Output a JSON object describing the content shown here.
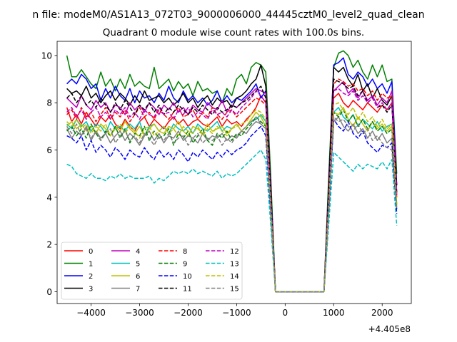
{
  "chart_data": {
    "type": "line",
    "suptitle": "n file: modeM0/AS1A13_072T03_9000006000_44445cztM0_level2_quad_clean",
    "title": "Quadrant 0 module wise count rates with 100.0s bins.",
    "xlabel": "",
    "ylabel": "",
    "x_offset_label": "+4.405e8",
    "xlim": [
      -4700,
      2600
    ],
    "ylim": [
      -0.5,
      10.6
    ],
    "xticks": [
      -4000,
      -3000,
      -2000,
      -1000,
      0,
      1000,
      2000
    ],
    "xtick_labels": [
      "−4000",
      "−3000",
      "−2000",
      "−1000",
      "0",
      "1000",
      "2000"
    ],
    "yticks": [
      0,
      2,
      4,
      6,
      8,
      10
    ],
    "ytick_labels": [
      "0",
      "2",
      "4",
      "6",
      "8",
      "10"
    ],
    "grid": false,
    "legend_position": "lower-left",
    "x": [
      -4500,
      -4400,
      -4300,
      -4200,
      -4100,
      -4000,
      -3900,
      -3800,
      -3700,
      -3600,
      -3500,
      -3400,
      -3300,
      -3200,
      -3100,
      -3000,
      -2900,
      -2800,
      -2700,
      -2600,
      -2500,
      -2400,
      -2300,
      -2200,
      -2100,
      -2000,
      -1900,
      -1800,
      -1700,
      -1600,
      -1500,
      -1400,
      -1300,
      -1200,
      -1100,
      -1000,
      -900,
      -800,
      -700,
      -600,
      -500,
      -400,
      -300,
      -200,
      -100,
      0,
      100,
      200,
      300,
      400,
      500,
      600,
      700,
      800,
      900,
      1000,
      1100,
      1200,
      1300,
      1400,
      1500,
      1600,
      1700,
      1800,
      1900,
      2000,
      2100,
      2200,
      2300
    ],
    "series": [
      {
        "name": "0",
        "color": "#ff0000",
        "dash": "solid",
        "values": [
          7.8,
          7.2,
          7.5,
          7.1,
          7.6,
          7.3,
          7.0,
          7.4,
          7.2,
          7.5,
          7.1,
          6.9,
          7.3,
          7.0,
          6.8,
          7.2,
          7.4,
          7.0,
          7.3,
          7.1,
          6.9,
          7.2,
          7.4,
          7.1,
          7.3,
          7.0,
          7.2,
          7.3,
          7.1,
          7.0,
          7.2,
          7.4,
          7.0,
          7.3,
          7.1,
          7.2,
          7.0,
          7.3,
          7.5,
          7.8,
          8.3,
          8.0,
          4.0,
          0,
          0,
          0,
          0,
          0,
          0,
          0,
          0,
          0,
          0,
          0,
          4.0,
          8.2,
          8.4,
          8.0,
          7.8,
          8.1,
          7.9,
          7.7,
          8.0,
          7.8,
          7.6,
          7.9,
          7.7,
          8.0,
          4.0
        ]
      },
      {
        "name": "1",
        "color": "#008000",
        "dash": "solid",
        "values": [
          10.0,
          9.1,
          9.1,
          9.4,
          9.1,
          8.8,
          8.6,
          9.3,
          8.7,
          9.0,
          8.5,
          9.0,
          8.6,
          9.2,
          8.7,
          8.9,
          8.7,
          8.6,
          9.5,
          8.6,
          8.8,
          9.0,
          8.5,
          8.9,
          8.6,
          8.8,
          8.3,
          8.9,
          8.5,
          8.6,
          8.4,
          8.5,
          8.0,
          8.6,
          8.3,
          9.0,
          9.2,
          8.8,
          9.5,
          9.7,
          9.6,
          9.3,
          5.0,
          0,
          0,
          0,
          0,
          0,
          0,
          0,
          0,
          0,
          0,
          0,
          5.0,
          9.5,
          10.1,
          10.2,
          10.0,
          9.5,
          9.8,
          9.3,
          9.0,
          9.6,
          9.1,
          9.6,
          8.9,
          9.0,
          5.0
        ]
      },
      {
        "name": "2",
        "color": "#0000ff",
        "dash": "solid",
        "values": [
          8.8,
          9.0,
          8.8,
          9.2,
          9.0,
          8.6,
          8.8,
          8.1,
          8.6,
          8.2,
          8.7,
          8.3,
          8.1,
          8.6,
          8.0,
          8.5,
          8.2,
          8.3,
          8.0,
          8.4,
          8.1,
          8.7,
          8.2,
          8.0,
          8.5,
          8.1,
          8.3,
          8.0,
          8.2,
          7.9,
          8.1,
          8.5,
          8.0,
          8.3,
          8.0,
          8.2,
          8.1,
          8.3,
          8.5,
          8.8,
          8.2,
          8.5,
          4.5,
          0,
          0,
          0,
          0,
          0,
          0,
          0,
          0,
          0,
          0,
          0,
          4.5,
          9.6,
          9.7,
          9.9,
          9.2,
          9.0,
          9.3,
          9.1,
          8.7,
          9.0,
          8.6,
          8.8,
          8.4,
          8.9,
          4.5
        ]
      },
      {
        "name": "3",
        "color": "#000000",
        "dash": "solid",
        "values": [
          8.6,
          8.4,
          8.5,
          8.3,
          8.7,
          8.2,
          8.4,
          8.0,
          8.3,
          8.5,
          8.1,
          8.4,
          8.2,
          7.9,
          8.3,
          8.0,
          8.5,
          8.1,
          8.2,
          8.3,
          8.0,
          8.2,
          7.9,
          8.1,
          8.4,
          8.0,
          8.2,
          7.8,
          8.1,
          8.3,
          7.9,
          8.2,
          8.0,
          8.1,
          7.8,
          8.2,
          8.3,
          8.5,
          8.8,
          9.0,
          9.6,
          8.7,
          4.5,
          0,
          0,
          0,
          0,
          0,
          0,
          0,
          0,
          0,
          0,
          0,
          4.5,
          9.5,
          9.3,
          9.5,
          9.0,
          8.7,
          9.2,
          8.5,
          8.8,
          8.2,
          8.6,
          8.1,
          7.9,
          8.3,
          4.5
        ]
      },
      {
        "name": "4",
        "color": "#bf00bf",
        "dash": "solid",
        "values": [
          8.2,
          8.0,
          7.8,
          8.3,
          7.9,
          7.7,
          8.1,
          7.8,
          8.0,
          7.6,
          7.9,
          7.8,
          7.5,
          8.0,
          7.7,
          7.9,
          7.6,
          8.0,
          7.8,
          7.5,
          7.9,
          7.7,
          8.0,
          7.6,
          7.8,
          7.5,
          7.9,
          7.7,
          7.6,
          8.0,
          7.8,
          7.7,
          8.1,
          7.6,
          7.9,
          7.8,
          8.0,
          8.2,
          8.4,
          8.6,
          8.5,
          8.4,
          4.2,
          0,
          0,
          0,
          0,
          0,
          0,
          0,
          0,
          0,
          0,
          0,
          4.2,
          8.5,
          8.7,
          8.9,
          8.4,
          8.6,
          8.2,
          8.5,
          8.1,
          8.3,
          7.9,
          8.2,
          8.0,
          8.5,
          4.2
        ]
      },
      {
        "name": "5",
        "color": "#00bfbf",
        "dash": "solid",
        "values": [
          7.1,
          6.9,
          7.3,
          7.0,
          7.2,
          6.8,
          7.1,
          7.0,
          6.7,
          7.2,
          6.9,
          7.0,
          6.8,
          7.1,
          6.9,
          7.2,
          6.6,
          7.0,
          7.1,
          6.8,
          7.0,
          6.7,
          7.1,
          6.9,
          6.8,
          7.0,
          6.7,
          7.1,
          6.9,
          6.8,
          7.0,
          7.2,
          6.8,
          7.0,
          6.9,
          7.1,
          6.8,
          7.0,
          7.2,
          7.3,
          7.5,
          7.2,
          3.7,
          0,
          0,
          0,
          0,
          0,
          0,
          0,
          0,
          0,
          0,
          0,
          3.7,
          7.6,
          7.8,
          7.4,
          7.2,
          7.5,
          7.0,
          7.3,
          7.1,
          6.9,
          7.2,
          6.8,
          7.0,
          7.1,
          3.7
        ]
      },
      {
        "name": "6",
        "color": "#bfbf00",
        "dash": "solid",
        "values": [
          7.0,
          7.2,
          6.9,
          7.1,
          6.8,
          7.0,
          6.7,
          7.1,
          6.9,
          6.6,
          7.0,
          6.8,
          7.2,
          6.9,
          6.7,
          7.0,
          6.6,
          6.9,
          7.1,
          6.8,
          6.7,
          7.0,
          6.9,
          7.2,
          6.8,
          6.6,
          7.0,
          6.9,
          6.7,
          7.1,
          6.8,
          6.9,
          7.0,
          6.7,
          6.9,
          7.1,
          6.8,
          7.0,
          7.3,
          7.6,
          7.4,
          7.0,
          3.6,
          0,
          0,
          0,
          0,
          0,
          0,
          0,
          0,
          0,
          0,
          0,
          3.6,
          7.6,
          7.5,
          7.8,
          7.3,
          7.0,
          7.4,
          7.1,
          6.8,
          7.2,
          6.9,
          7.1,
          6.8,
          7.0,
          3.6
        ]
      },
      {
        "name": "7",
        "color": "#808080",
        "dash": "solid",
        "values": [
          6.9,
          6.5,
          6.8,
          6.6,
          7.0,
          6.4,
          6.8,
          6.5,
          6.7,
          6.3,
          6.6,
          6.8,
          6.4,
          6.7,
          6.5,
          6.2,
          6.6,
          6.8,
          6.4,
          6.7,
          6.3,
          6.6,
          6.5,
          6.8,
          6.4,
          6.6,
          6.5,
          6.3,
          6.7,
          6.4,
          6.6,
          6.5,
          6.7,
          6.4,
          6.6,
          6.5,
          6.8,
          6.7,
          7.0,
          7.2,
          7.1,
          6.9,
          3.5,
          0,
          0,
          0,
          0,
          0,
          0,
          0,
          0,
          0,
          0,
          0,
          3.5,
          7.2,
          7.4,
          7.0,
          6.8,
          7.1,
          6.7,
          6.9,
          6.5,
          6.8,
          6.4,
          6.7,
          6.3,
          6.5,
          3.5
        ]
      },
      {
        "name": "8",
        "color": "#ff0000",
        "dash": "dashed",
        "values": [
          7.5,
          7.7,
          7.3,
          7.8,
          7.4,
          7.6,
          7.2,
          7.5,
          7.8,
          7.3,
          7.6,
          7.4,
          7.7,
          7.2,
          7.5,
          7.8,
          7.4,
          7.6,
          7.3,
          7.7,
          7.5,
          7.3,
          7.6,
          7.8,
          7.4,
          7.5,
          7.7,
          7.3,
          7.6,
          7.4,
          7.8,
          7.5,
          7.3,
          7.6,
          7.7,
          7.4,
          7.6,
          7.8,
          8.0,
          8.2,
          8.1,
          7.9,
          4.0,
          0,
          0,
          0,
          0,
          0,
          0,
          0,
          0,
          0,
          0,
          0,
          4.0,
          8.8,
          9.0,
          8.9,
          8.7,
          8.8,
          8.5,
          8.6,
          8.3,
          8.5,
          8.1,
          8.4,
          8.2,
          8.3,
          4.0
        ]
      },
      {
        "name": "9",
        "color": "#008000",
        "dash": "dashed",
        "values": [
          6.8,
          7.0,
          6.6,
          6.9,
          6.5,
          7.1,
          6.7,
          6.4,
          6.8,
          6.6,
          7.0,
          6.5,
          6.9,
          6.3,
          6.7,
          6.6,
          7.0,
          6.4,
          6.8,
          6.5,
          6.6,
          6.9,
          6.2,
          6.7,
          6.5,
          6.8,
          6.3,
          6.6,
          6.9,
          6.4,
          6.2,
          6.7,
          6.5,
          6.8,
          6.4,
          6.7,
          6.6,
          6.9,
          7.1,
          7.4,
          7.2,
          7.0,
          3.5,
          0,
          0,
          0,
          0,
          0,
          0,
          0,
          0,
          0,
          0,
          0,
          3.5,
          7.6,
          7.4,
          7.7,
          7.2,
          7.5,
          7.0,
          7.3,
          6.9,
          7.2,
          6.8,
          7.0,
          6.7,
          6.9,
          3.5
        ]
      },
      {
        "name": "10",
        "color": "#0000ff",
        "dash": "dashed",
        "values": [
          6.6,
          6.5,
          6.3,
          6.6,
          6.0,
          6.4,
          5.9,
          6.2,
          6.0,
          5.7,
          6.1,
          5.9,
          5.6,
          6.0,
          5.8,
          5.7,
          6.1,
          5.8,
          5.6,
          6.0,
          5.7,
          5.9,
          5.6,
          6.0,
          5.8,
          5.5,
          5.9,
          5.7,
          6.0,
          5.8,
          5.6,
          5.9,
          5.7,
          6.0,
          5.8,
          6.0,
          6.1,
          6.3,
          6.6,
          6.8,
          7.0,
          6.6,
          3.3,
          0,
          0,
          0,
          0,
          0,
          0,
          0,
          0,
          0,
          0,
          0,
          3.3,
          7.3,
          7.0,
          6.8,
          7.2,
          6.7,
          6.5,
          6.8,
          6.3,
          6.1,
          5.9,
          6.2,
          6.1,
          6.3,
          3.3
        ]
      },
      {
        "name": "11",
        "color": "#000000",
        "dash": "dashed",
        "values": [
          8.2,
          8.4,
          8.0,
          8.3,
          7.9,
          8.1,
          7.8,
          8.2,
          7.9,
          7.6,
          8.0,
          7.7,
          8.1,
          7.8,
          7.5,
          7.9,
          7.7,
          8.0,
          7.6,
          7.9,
          7.5,
          7.8,
          7.6,
          7.9,
          7.7,
          7.5,
          7.8,
          7.6,
          7.9,
          7.7,
          7.5,
          7.8,
          7.6,
          7.7,
          7.9,
          7.8,
          8.0,
          8.1,
          8.3,
          8.5,
          8.7,
          8.2,
          4.2,
          0,
          0,
          0,
          0,
          0,
          0,
          0,
          0,
          0,
          0,
          0,
          4.2,
          9.0,
          8.9,
          8.8,
          8.6,
          8.7,
          8.3,
          8.5,
          8.0,
          8.2,
          7.8,
          7.9,
          7.6,
          7.9,
          4.2
        ]
      },
      {
        "name": "12",
        "color": "#bf00bf",
        "dash": "dashed",
        "values": [
          7.6,
          7.8,
          7.4,
          7.7,
          7.3,
          7.6,
          7.8,
          7.4,
          7.6,
          7.3,
          7.7,
          7.5,
          7.8,
          7.4,
          7.6,
          7.3,
          7.7,
          7.5,
          7.4,
          7.8,
          7.5,
          7.6,
          7.3,
          7.7,
          7.5,
          7.8,
          7.4,
          7.6,
          7.5,
          7.3,
          7.7,
          7.5,
          7.6,
          7.4,
          7.7,
          7.5,
          7.8,
          8.0,
          8.2,
          8.5,
          8.3,
          8.0,
          4.1,
          0,
          0,
          0,
          0,
          0,
          0,
          0,
          0,
          0,
          0,
          0,
          4.1,
          8.5,
          8.6,
          8.4,
          8.3,
          8.5,
          8.1,
          8.3,
          8.0,
          8.2,
          7.8,
          8.0,
          7.7,
          8.0,
          4.1
        ]
      },
      {
        "name": "13",
        "color": "#00bfbf",
        "dash": "dashed",
        "values": [
          5.4,
          5.3,
          5.0,
          4.9,
          4.8,
          5.0,
          4.8,
          4.8,
          4.7,
          4.9,
          4.8,
          5.0,
          4.8,
          4.9,
          4.8,
          4.8,
          4.8,
          4.9,
          4.6,
          4.8,
          4.7,
          4.9,
          5.1,
          5.0,
          5.1,
          5.0,
          5.2,
          5.0,
          5.1,
          5.0,
          4.9,
          5.1,
          4.8,
          5.0,
          4.9,
          5.0,
          5.2,
          5.4,
          5.6,
          5.8,
          6.0,
          5.6,
          2.9,
          0,
          0,
          0,
          0,
          0,
          0,
          0,
          0,
          0,
          0,
          0,
          2.9,
          5.9,
          5.7,
          5.5,
          5.3,
          5.1,
          5.4,
          5.2,
          5.4,
          5.3,
          5.2,
          5.5,
          5.2,
          5.6,
          2.8
        ]
      },
      {
        "name": "14",
        "color": "#bfbf00",
        "dash": "dashed",
        "values": [
          7.2,
          7.0,
          7.3,
          6.9,
          7.1,
          6.7,
          7.0,
          6.8,
          7.1,
          6.6,
          6.9,
          7.1,
          6.7,
          7.0,
          6.8,
          6.5,
          6.9,
          7.0,
          6.6,
          6.8,
          7.0,
          6.7,
          6.9,
          6.6,
          7.0,
          6.8,
          6.7,
          7.0,
          6.6,
          6.9,
          6.7,
          7.0,
          6.8,
          6.6,
          6.9,
          7.0,
          7.1,
          7.2,
          7.5,
          7.7,
          7.6,
          7.3,
          3.7,
          0,
          0,
          0,
          0,
          0,
          0,
          0,
          0,
          0,
          0,
          0,
          3.7,
          7.9,
          8.0,
          7.7,
          7.5,
          7.8,
          7.3,
          7.6,
          7.2,
          7.4,
          7.0,
          7.3,
          6.9,
          7.1,
          3.7
        ]
      },
      {
        "name": "15",
        "color": "#808080",
        "dash": "dashed",
        "values": [
          7.0,
          6.7,
          7.1,
          6.6,
          6.9,
          6.5,
          6.8,
          6.4,
          6.7,
          6.9,
          6.3,
          6.6,
          6.8,
          6.4,
          6.6,
          6.3,
          6.7,
          6.5,
          6.2,
          6.6,
          6.4,
          6.7,
          6.3,
          6.5,
          6.6,
          6.2,
          6.5,
          6.7,
          6.3,
          6.5,
          6.4,
          6.6,
          6.2,
          6.5,
          6.3,
          6.6,
          6.8,
          7.0,
          7.2,
          7.4,
          7.1,
          6.9,
          3.5,
          0,
          0,
          0,
          0,
          0,
          0,
          0,
          0,
          0,
          0,
          0,
          3.5,
          7.4,
          7.2,
          7.3,
          7.0,
          6.8,
          7.1,
          6.7,
          6.9,
          6.4,
          6.6,
          6.3,
          6.1,
          6.0,
          3.5
        ]
      }
    ]
  }
}
